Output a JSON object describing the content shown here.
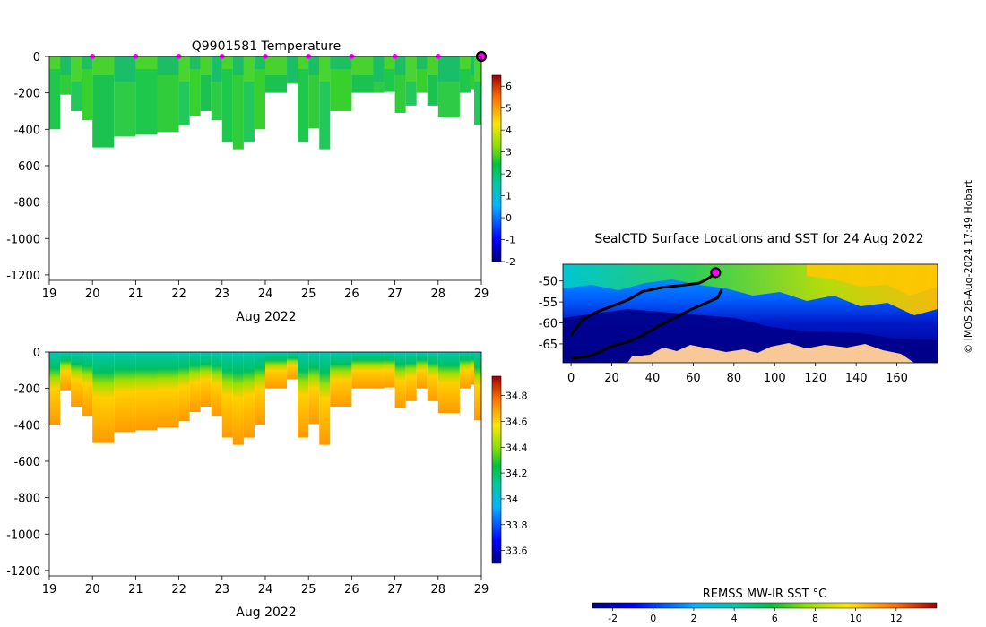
{
  "temperature_panel": {
    "title": "Q9901581  Temperature",
    "month_label": "Aug 2022",
    "x_ticks": [
      "19",
      "20",
      "21",
      "22",
      "23",
      "24",
      "25",
      "26",
      "27",
      "28",
      "29"
    ],
    "y_ticks": [
      "0",
      "-200",
      "-400",
      "-600",
      "-800",
      "-1000",
      "-1200"
    ],
    "colorbar_ticks": [
      "6",
      "5",
      "4",
      "3",
      "2",
      "1",
      "0",
      "-1",
      "-2"
    ]
  },
  "salinity_panel": {
    "month_label": "Aug 2022",
    "x_ticks": [
      "19",
      "20",
      "21",
      "22",
      "23",
      "24",
      "25",
      "26",
      "27",
      "28",
      "29"
    ],
    "y_ticks": [
      "0",
      "-200",
      "-400",
      "-600",
      "-800",
      "-1000",
      "-1200"
    ],
    "colorbar_ticks": [
      "34.8",
      "34.6",
      "34.4",
      "34.2",
      "34",
      "33.8",
      "33.6"
    ]
  },
  "map_panel": {
    "title": "SealCTD Surface Locations and SST for 24 Aug 2022",
    "x_ticks": [
      "0",
      "20",
      "40",
      "60",
      "80",
      "100",
      "120",
      "140",
      "160"
    ],
    "y_ticks": [
      "-50",
      "-55",
      "-60",
      "-65"
    ],
    "colorbar_label": "REMSS MW-IR SST °C",
    "colorbar_ticks": [
      "-2",
      "0",
      "2",
      "4",
      "6",
      "8",
      "10",
      "12"
    ]
  },
  "credit": "© IMOS 26-Aug-2024 17:49 Hobart",
  "chart_data": [
    {
      "type": "heatmap",
      "title": "Q9901581  Temperature",
      "xlabel": "Aug 2022",
      "ylabel": "",
      "xlim": [
        19,
        29
      ],
      "ylim": [
        -1230,
        0
      ],
      "clim": [
        -2,
        6.5
      ],
      "profile_times": [
        19,
        19.25,
        19.5,
        19.75,
        20,
        20.5,
        21,
        21.5,
        22,
        22.25,
        22.5,
        22.75,
        23,
        23.25,
        23.5,
        23.75,
        24,
        24.5,
        24.75,
        25,
        25.25,
        25.5,
        26,
        26.5,
        26.75,
        27,
        27.25,
        27.5,
        27.75,
        28,
        28.5,
        28.75,
        29
      ],
      "profile_depths": [
        -400,
        -210,
        -300,
        -350,
        -500,
        -440,
        -430,
        -415,
        -380,
        -330,
        -300,
        -350,
        -470,
        -510,
        -470,
        -400,
        -200,
        -150,
        -470,
        -395,
        -510,
        -300,
        -200,
        -200,
        -195,
        -310,
        -270,
        -200,
        -270,
        -335,
        -200,
        -180,
        -375
      ],
      "surface_markers_x": [
        20,
        21,
        22,
        23,
        24,
        25,
        26,
        27,
        28
      ],
      "last_position_x": 29,
      "colorbar_ticks": [
        6,
        5,
        4,
        3,
        2,
        1,
        0,
        -1,
        -2
      ]
    },
    {
      "type": "heatmap",
      "title": "",
      "xlabel": "Aug 2022",
      "ylabel": "",
      "xlim": [
        19,
        29
      ],
      "ylim": [
        -1230,
        0
      ],
      "clim": [
        33.5,
        34.95
      ],
      "profile_times": [
        19,
        19.25,
        19.5,
        19.75,
        20,
        20.5,
        21,
        21.5,
        22,
        22.25,
        22.5,
        22.75,
        23,
        23.25,
        23.5,
        23.75,
        24,
        24.5,
        24.75,
        25,
        25.25,
        25.5,
        26,
        26.5,
        26.75,
        27,
        27.25,
        27.5,
        27.75,
        28,
        28.5,
        28.75,
        29
      ],
      "profile_depths": [
        -400,
        -210,
        -300,
        -350,
        -500,
        -440,
        -430,
        -415,
        -380,
        -330,
        -300,
        -350,
        -470,
        -510,
        -470,
        -400,
        -200,
        -150,
        -470,
        -395,
        -510,
        -300,
        -200,
        -200,
        -195,
        -310,
        -270,
        -200,
        -270,
        -335,
        -200,
        -180,
        -375
      ],
      "colorbar_ticks": [
        34.8,
        34.6,
        34.4,
        34.2,
        34,
        33.8,
        33.6
      ]
    },
    {
      "type": "heatmap",
      "title": "SealCTD Surface Locations and SST for 24 Aug 2022",
      "xlabel": "",
      "ylabel": "",
      "xlim": [
        -4,
        180
      ],
      "ylim": [
        -69.5,
        -46
      ],
      "track_lon": [
        0,
        5,
        12,
        20,
        28,
        35,
        45,
        55,
        63,
        67,
        70,
        71
      ],
      "track_lat": [
        -63,
        -59.5,
        -57.5,
        -56,
        -54.5,
        -52.5,
        -51.5,
        -51,
        -50.5,
        -49.5,
        -48.5,
        -48
      ],
      "track2_lon": [
        0,
        10,
        20,
        28,
        35,
        42,
        50,
        58,
        65,
        72,
        74
      ],
      "track2_lat": [
        -68.5,
        -67.8,
        -65.5,
        -64.5,
        -63,
        -61,
        -59,
        -57,
        -55.5,
        -54,
        -52
      ],
      "current_position": [
        71,
        -48
      ],
      "colorbar_label": "REMSS MW-IR SST °C",
      "clim": [
        -3,
        14
      ],
      "colorbar_ticks": [
        -2,
        0,
        2,
        4,
        6,
        8,
        10,
        12
      ]
    }
  ]
}
